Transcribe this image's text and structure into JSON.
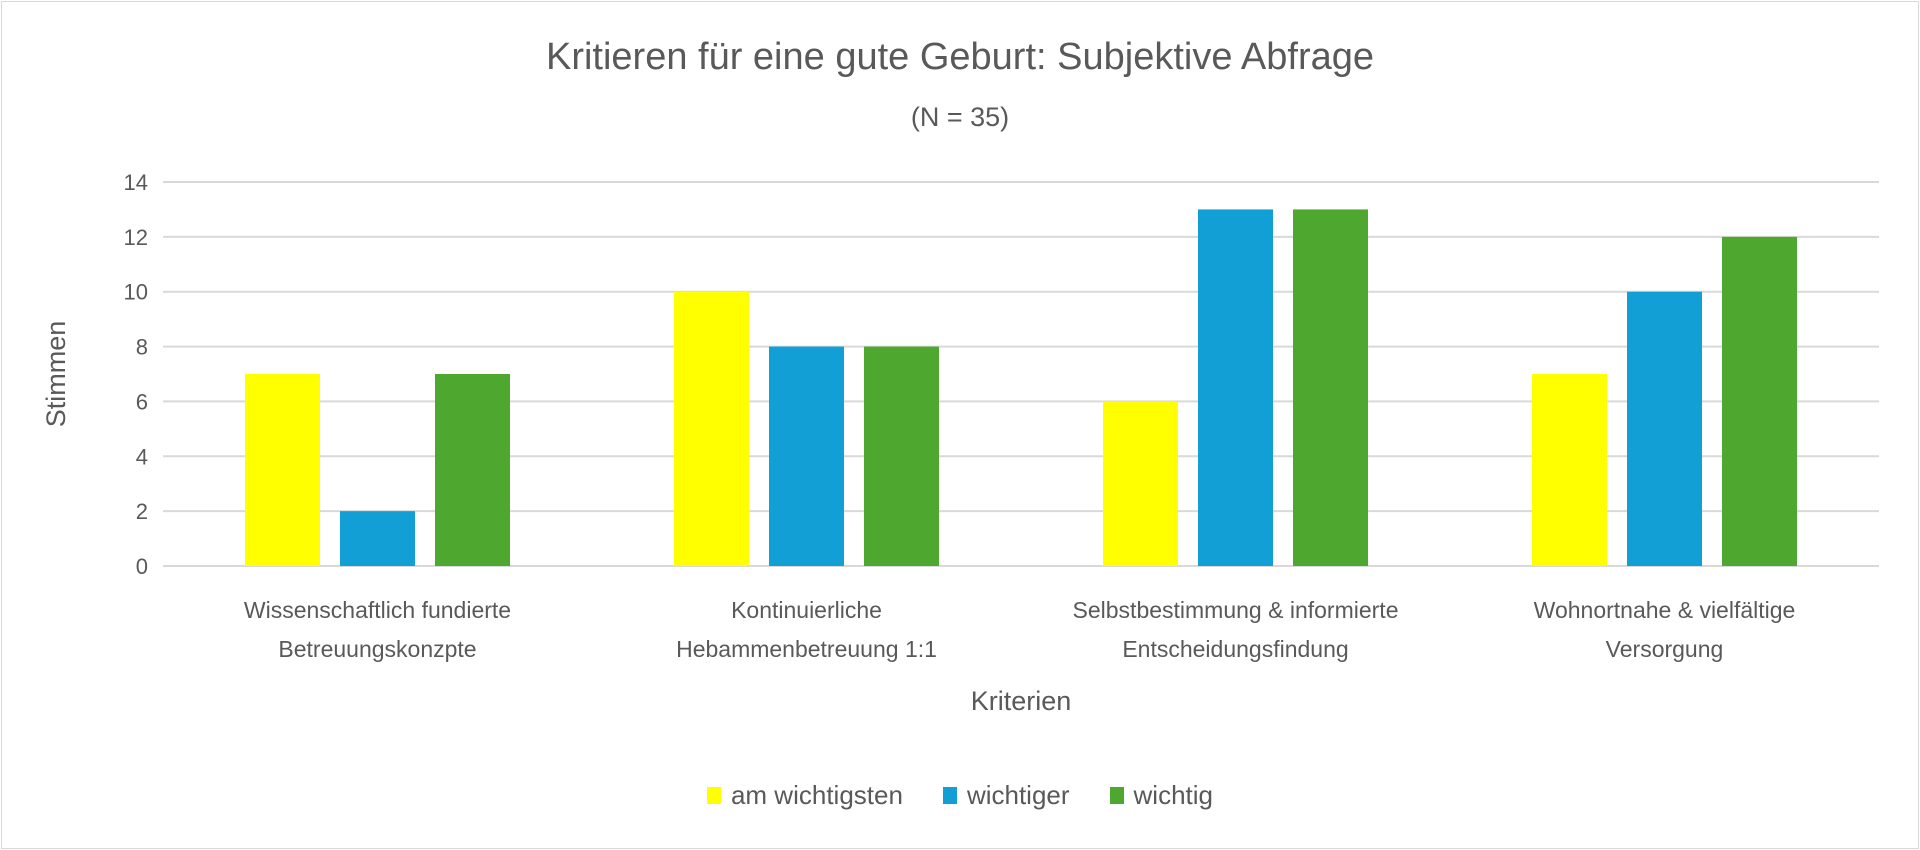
{
  "chart_data": {
    "type": "bar",
    "title": "Kritieren für eine gute Geburt: Subjektive Abfrage",
    "subtitle": "(N = 35)",
    "xlabel": "Kriterien",
    "ylabel": "Stimmen",
    "ylim": [
      0,
      14
    ],
    "yticks": [
      0,
      2,
      4,
      6,
      8,
      10,
      12,
      14
    ],
    "grid": true,
    "legend_position": "bottom",
    "categories": [
      [
        "Wissenschaftlich fundierte",
        "Betreuungskonzpte"
      ],
      [
        "Kontinuierliche",
        "Hebammenbetreuung 1:1"
      ],
      [
        "Selbstbestimmung & informierte",
        "Entscheidungsfindung"
      ],
      [
        "Wohnortnahe & vielfältige",
        "Versorgung"
      ]
    ],
    "series": [
      {
        "name": "am wichtigsten",
        "color": "#FFFF00",
        "values": [
          7,
          10,
          6,
          7
        ]
      },
      {
        "name": "wichtiger",
        "color": "#119FD6",
        "values": [
          2,
          8,
          13,
          10
        ]
      },
      {
        "name": "wichtig",
        "color": "#4EA72E",
        "values": [
          7,
          8,
          13,
          12
        ]
      }
    ]
  }
}
